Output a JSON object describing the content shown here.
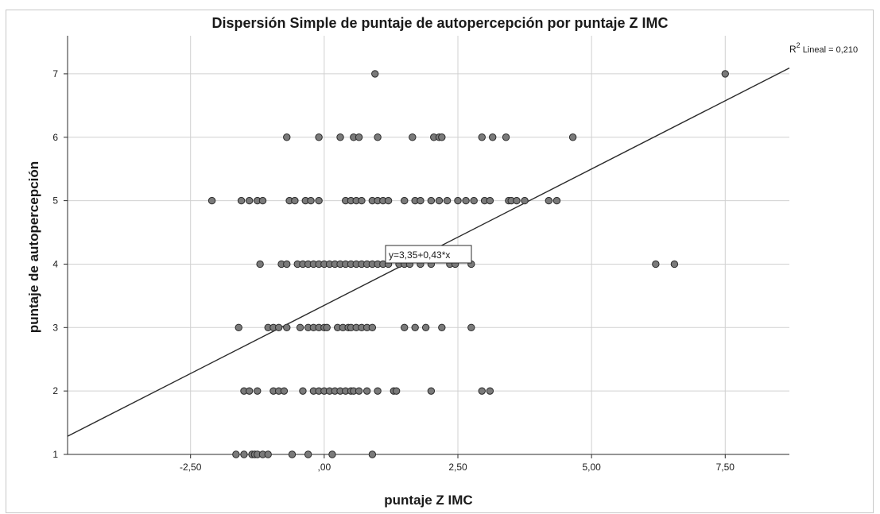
{
  "chart_data": {
    "type": "scatter",
    "title": "Dispersión Simple de puntaje de autopercepción por puntaje Z IMC",
    "xlabel": "puntaje Z IMC",
    "ylabel": "puntaje de autopercepción",
    "xlim": [
      -4.8,
      8.7
    ],
    "ylim": [
      1,
      7.6
    ],
    "x_ticks": [
      -2.5,
      0,
      2.5,
      5,
      7.5
    ],
    "x_tick_labels": [
      "-2,50",
      ",00",
      "2,50",
      "5,00",
      "7,50"
    ],
    "y_ticks": [
      1,
      2,
      3,
      4,
      5,
      6,
      7
    ],
    "y_tick_labels": [
      "1",
      "2",
      "3",
      "4",
      "5",
      "6",
      "7"
    ],
    "grid": true,
    "fit_line": {
      "intercept": 3.35,
      "slope": 0.43,
      "label": "y=3,35+0,43*x"
    },
    "r_squared_label": {
      "prefix": "R",
      "sup": "2",
      "text": " Lineal = 0,210"
    },
    "point_color": "#7a7a7a",
    "point_edge_color": "#2b2b2b",
    "line_color": "#2b2b2b",
    "grid_color": "#d0d0d0",
    "series": [
      {
        "points": [
          [
            -1.65,
            1
          ],
          [
            -1.5,
            1
          ],
          [
            -1.35,
            1
          ],
          [
            -1.3,
            1
          ],
          [
            -1.25,
            1
          ],
          [
            -1.15,
            1
          ],
          [
            -1.05,
            1
          ],
          [
            -0.6,
            1
          ],
          [
            -0.3,
            1
          ],
          [
            0.15,
            1
          ],
          [
            0.9,
            1
          ],
          [
            -1.5,
            2
          ],
          [
            -1.4,
            2
          ],
          [
            -1.25,
            2
          ],
          [
            -0.95,
            2
          ],
          [
            -0.85,
            2
          ],
          [
            -0.75,
            2
          ],
          [
            -0.4,
            2
          ],
          [
            -0.2,
            2
          ],
          [
            -0.1,
            2
          ],
          [
            0.0,
            2
          ],
          [
            0.1,
            2
          ],
          [
            0.2,
            2
          ],
          [
            0.3,
            2
          ],
          [
            0.4,
            2
          ],
          [
            0.5,
            2
          ],
          [
            0.55,
            2
          ],
          [
            0.65,
            2
          ],
          [
            0.8,
            2
          ],
          [
            1.0,
            2
          ],
          [
            1.3,
            2
          ],
          [
            1.35,
            2
          ],
          [
            2.0,
            2
          ],
          [
            2.95,
            2
          ],
          [
            3.1,
            2
          ],
          [
            -1.6,
            3
          ],
          [
            -1.05,
            3
          ],
          [
            -0.95,
            3
          ],
          [
            -0.85,
            3
          ],
          [
            -0.7,
            3
          ],
          [
            -0.45,
            3
          ],
          [
            -0.3,
            3
          ],
          [
            -0.2,
            3
          ],
          [
            -0.1,
            3
          ],
          [
            0.0,
            3
          ],
          [
            0.05,
            3
          ],
          [
            0.25,
            3
          ],
          [
            0.35,
            3
          ],
          [
            0.45,
            3
          ],
          [
            0.5,
            3
          ],
          [
            0.6,
            3
          ],
          [
            0.7,
            3
          ],
          [
            0.8,
            3
          ],
          [
            0.9,
            3
          ],
          [
            1.5,
            3
          ],
          [
            1.7,
            3
          ],
          [
            1.9,
            3
          ],
          [
            2.2,
            3
          ],
          [
            2.75,
            3
          ],
          [
            -1.2,
            4
          ],
          [
            -0.8,
            4
          ],
          [
            -0.7,
            4
          ],
          [
            -0.5,
            4
          ],
          [
            -0.4,
            4
          ],
          [
            -0.3,
            4
          ],
          [
            -0.2,
            4
          ],
          [
            -0.1,
            4
          ],
          [
            0.0,
            4
          ],
          [
            0.1,
            4
          ],
          [
            0.2,
            4
          ],
          [
            0.3,
            4
          ],
          [
            0.4,
            4
          ],
          [
            0.5,
            4
          ],
          [
            0.6,
            4
          ],
          [
            0.7,
            4
          ],
          [
            0.8,
            4
          ],
          [
            0.9,
            4
          ],
          [
            1.0,
            4
          ],
          [
            1.1,
            4
          ],
          [
            1.2,
            4
          ],
          [
            1.4,
            4
          ],
          [
            1.5,
            4
          ],
          [
            1.6,
            4
          ],
          [
            1.8,
            4
          ],
          [
            2.0,
            4
          ],
          [
            2.35,
            4
          ],
          [
            2.45,
            4
          ],
          [
            2.75,
            4
          ],
          [
            6.2,
            4
          ],
          [
            6.55,
            4
          ],
          [
            -2.1,
            5
          ],
          [
            -1.55,
            5
          ],
          [
            -1.4,
            5
          ],
          [
            -1.25,
            5
          ],
          [
            -1.15,
            5
          ],
          [
            -0.65,
            5
          ],
          [
            -0.55,
            5
          ],
          [
            -0.35,
            5
          ],
          [
            -0.25,
            5
          ],
          [
            -0.1,
            5
          ],
          [
            0.4,
            5
          ],
          [
            0.5,
            5
          ],
          [
            0.6,
            5
          ],
          [
            0.7,
            5
          ],
          [
            0.9,
            5
          ],
          [
            1.0,
            5
          ],
          [
            1.1,
            5
          ],
          [
            1.2,
            5
          ],
          [
            1.5,
            5
          ],
          [
            1.7,
            5
          ],
          [
            1.8,
            5
          ],
          [
            2.0,
            5
          ],
          [
            2.15,
            5
          ],
          [
            2.3,
            5
          ],
          [
            2.5,
            5
          ],
          [
            2.65,
            5
          ],
          [
            2.8,
            5
          ],
          [
            3.0,
            5
          ],
          [
            3.1,
            5
          ],
          [
            3.45,
            5
          ],
          [
            3.5,
            5
          ],
          [
            3.6,
            5
          ],
          [
            3.75,
            5
          ],
          [
            4.2,
            5
          ],
          [
            4.35,
            5
          ],
          [
            -0.7,
            6
          ],
          [
            -0.1,
            6
          ],
          [
            0.3,
            6
          ],
          [
            0.55,
            6
          ],
          [
            0.65,
            6
          ],
          [
            1.0,
            6
          ],
          [
            1.65,
            6
          ],
          [
            2.05,
            6
          ],
          [
            2.15,
            6
          ],
          [
            2.2,
            6
          ],
          [
            2.95,
            6
          ],
          [
            3.15,
            6
          ],
          [
            3.4,
            6
          ],
          [
            4.65,
            6
          ],
          [
            0.95,
            7
          ],
          [
            7.5,
            7
          ]
        ]
      }
    ]
  }
}
